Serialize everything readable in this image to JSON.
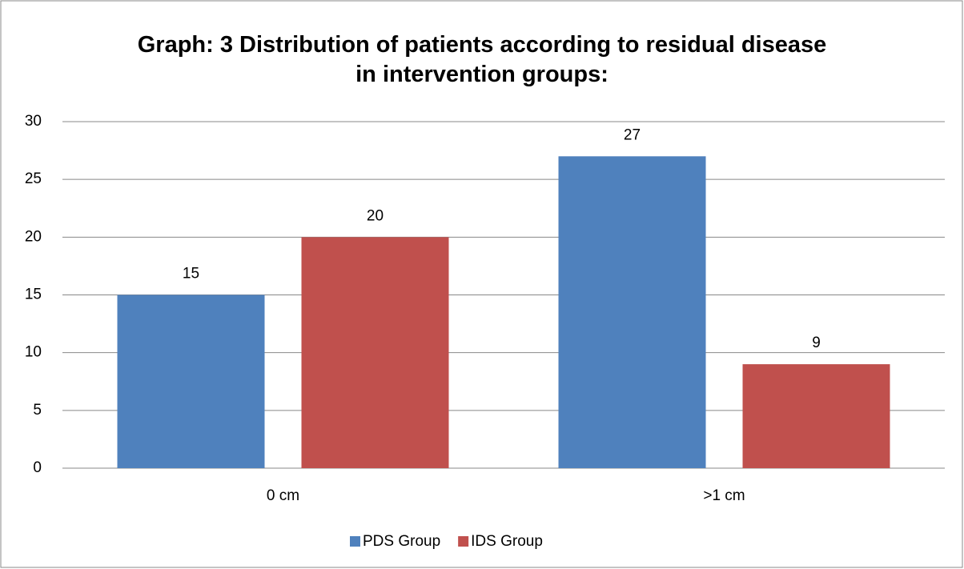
{
  "chart_data": {
    "type": "bar",
    "title": "Graph: 3 Distribution of patients according to residual disease in intervention groups:",
    "categories": [
      "0 cm",
      ">1 cm"
    ],
    "series": [
      {
        "name": "PDS Group",
        "color": "#4f81bd",
        "values": [
          15,
          27
        ]
      },
      {
        "name": "IDS Group",
        "color": "#c0504d",
        "values": [
          20,
          9
        ]
      }
    ],
    "ylim": [
      0,
      30
    ],
    "yticks": [
      0,
      5,
      10,
      15,
      20,
      25,
      30
    ],
    "grid": true,
    "legend": "bottom"
  }
}
